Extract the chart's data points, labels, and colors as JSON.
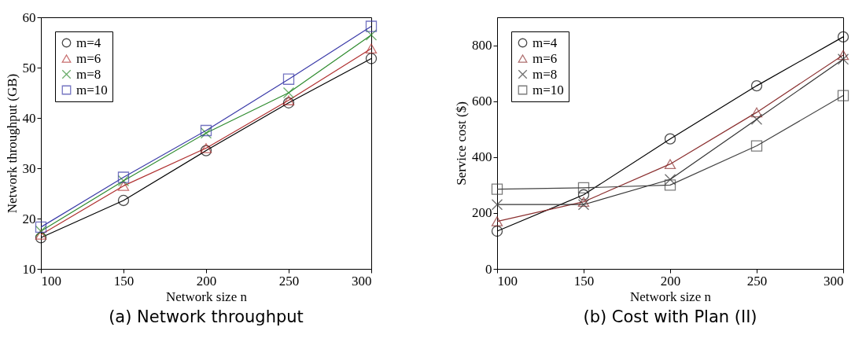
{
  "chart_data": [
    {
      "type": "line",
      "title": "(a) Network throughput",
      "xlabel": "Network size n",
      "ylabel": "Network throughput (GB)",
      "x": [
        100,
        150,
        200,
        250,
        300
      ],
      "xlim": [
        100,
        300
      ],
      "xticks": [
        100,
        150,
        200,
        250,
        300
      ],
      "ylim": [
        10,
        60
      ],
      "yticks": [
        10,
        20,
        30,
        40,
        50,
        60
      ],
      "grid": false,
      "legend": "top left",
      "series": [
        {
          "name": "m=4",
          "color": "#000000",
          "marker": "circle",
          "values": [
            16.2,
            23.6,
            33.5,
            43,
            51.8
          ]
        },
        {
          "name": "m=6",
          "color": "#b03030",
          "marker": "triangle",
          "values": [
            16.8,
            26.5,
            34,
            43.5,
            53.8
          ]
        },
        {
          "name": "m=8",
          "color": "#2e8b2e",
          "marker": "cross",
          "values": [
            17.5,
            27.5,
            37,
            45,
            56.5
          ]
        },
        {
          "name": "m=10",
          "color": "#3a3aa8",
          "marker": "square",
          "values": [
            18.3,
            28.2,
            37.5,
            47.7,
            58.2
          ]
        }
      ]
    },
    {
      "type": "line",
      "title": "(b) Cost with Plan (II)",
      "xlabel": "Network size n",
      "ylabel": "Service cost ($)",
      "x": [
        100,
        150,
        200,
        250,
        300
      ],
      "xlim": [
        100,
        300
      ],
      "xticks": [
        100,
        150,
        200,
        250,
        300
      ],
      "ylim": [
        0,
        900
      ],
      "yticks": [
        0,
        200,
        400,
        600,
        800
      ],
      "grid": false,
      "legend": "top left",
      "series": [
        {
          "name": "m=4",
          "color": "#000000",
          "marker": "circle",
          "values": [
            135,
            265,
            465,
            655,
            830
          ]
        },
        {
          "name": "m=6",
          "color": "#8b3030",
          "marker": "triangle",
          "values": [
            170,
            240,
            375,
            560,
            765
          ]
        },
        {
          "name": "m=8",
          "color": "#333333",
          "marker": "cross",
          "values": [
            230,
            230,
            320,
            535,
            750
          ]
        },
        {
          "name": "m=10",
          "color": "#444444",
          "marker": "square",
          "values": [
            285,
            290,
            300,
            440,
            620
          ]
        }
      ]
    }
  ]
}
